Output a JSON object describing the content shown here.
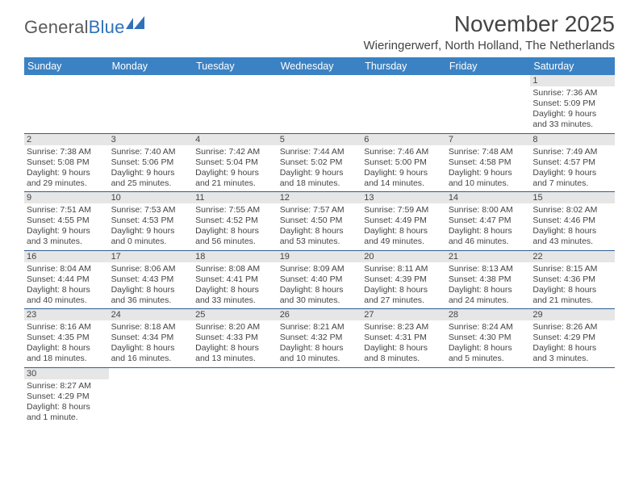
{
  "logo": {
    "general": "General",
    "blue": "Blue"
  },
  "title": "November 2025",
  "location": "Wieringerwerf, North Holland, The Netherlands",
  "colors": {
    "header_bg": "#3b82c4",
    "header_text": "#ffffff",
    "daynum_bg": "#e6e6e6",
    "rule": "#2f5f95",
    "text": "#444444",
    "logo_gray": "#5a5a5a",
    "logo_blue": "#2f72b8"
  },
  "day_headers": [
    "Sunday",
    "Monday",
    "Tuesday",
    "Wednesday",
    "Thursday",
    "Friday",
    "Saturday"
  ],
  "weeks": [
    [
      null,
      null,
      null,
      null,
      null,
      null,
      {
        "n": "1",
        "sr": "Sunrise: 7:36 AM",
        "ss": "Sunset: 5:09 PM",
        "dl1": "Daylight: 9 hours",
        "dl2": "and 33 minutes."
      }
    ],
    [
      {
        "n": "2",
        "sr": "Sunrise: 7:38 AM",
        "ss": "Sunset: 5:08 PM",
        "dl1": "Daylight: 9 hours",
        "dl2": "and 29 minutes."
      },
      {
        "n": "3",
        "sr": "Sunrise: 7:40 AM",
        "ss": "Sunset: 5:06 PM",
        "dl1": "Daylight: 9 hours",
        "dl2": "and 25 minutes."
      },
      {
        "n": "4",
        "sr": "Sunrise: 7:42 AM",
        "ss": "Sunset: 5:04 PM",
        "dl1": "Daylight: 9 hours",
        "dl2": "and 21 minutes."
      },
      {
        "n": "5",
        "sr": "Sunrise: 7:44 AM",
        "ss": "Sunset: 5:02 PM",
        "dl1": "Daylight: 9 hours",
        "dl2": "and 18 minutes."
      },
      {
        "n": "6",
        "sr": "Sunrise: 7:46 AM",
        "ss": "Sunset: 5:00 PM",
        "dl1": "Daylight: 9 hours",
        "dl2": "and 14 minutes."
      },
      {
        "n": "7",
        "sr": "Sunrise: 7:48 AM",
        "ss": "Sunset: 4:58 PM",
        "dl1": "Daylight: 9 hours",
        "dl2": "and 10 minutes."
      },
      {
        "n": "8",
        "sr": "Sunrise: 7:49 AM",
        "ss": "Sunset: 4:57 PM",
        "dl1": "Daylight: 9 hours",
        "dl2": "and 7 minutes."
      }
    ],
    [
      {
        "n": "9",
        "sr": "Sunrise: 7:51 AM",
        "ss": "Sunset: 4:55 PM",
        "dl1": "Daylight: 9 hours",
        "dl2": "and 3 minutes."
      },
      {
        "n": "10",
        "sr": "Sunrise: 7:53 AM",
        "ss": "Sunset: 4:53 PM",
        "dl1": "Daylight: 9 hours",
        "dl2": "and 0 minutes."
      },
      {
        "n": "11",
        "sr": "Sunrise: 7:55 AM",
        "ss": "Sunset: 4:52 PM",
        "dl1": "Daylight: 8 hours",
        "dl2": "and 56 minutes."
      },
      {
        "n": "12",
        "sr": "Sunrise: 7:57 AM",
        "ss": "Sunset: 4:50 PM",
        "dl1": "Daylight: 8 hours",
        "dl2": "and 53 minutes."
      },
      {
        "n": "13",
        "sr": "Sunrise: 7:59 AM",
        "ss": "Sunset: 4:49 PM",
        "dl1": "Daylight: 8 hours",
        "dl2": "and 49 minutes."
      },
      {
        "n": "14",
        "sr": "Sunrise: 8:00 AM",
        "ss": "Sunset: 4:47 PM",
        "dl1": "Daylight: 8 hours",
        "dl2": "and 46 minutes."
      },
      {
        "n": "15",
        "sr": "Sunrise: 8:02 AM",
        "ss": "Sunset: 4:46 PM",
        "dl1": "Daylight: 8 hours",
        "dl2": "and 43 minutes."
      }
    ],
    [
      {
        "n": "16",
        "sr": "Sunrise: 8:04 AM",
        "ss": "Sunset: 4:44 PM",
        "dl1": "Daylight: 8 hours",
        "dl2": "and 40 minutes."
      },
      {
        "n": "17",
        "sr": "Sunrise: 8:06 AM",
        "ss": "Sunset: 4:43 PM",
        "dl1": "Daylight: 8 hours",
        "dl2": "and 36 minutes."
      },
      {
        "n": "18",
        "sr": "Sunrise: 8:08 AM",
        "ss": "Sunset: 4:41 PM",
        "dl1": "Daylight: 8 hours",
        "dl2": "and 33 minutes."
      },
      {
        "n": "19",
        "sr": "Sunrise: 8:09 AM",
        "ss": "Sunset: 4:40 PM",
        "dl1": "Daylight: 8 hours",
        "dl2": "and 30 minutes."
      },
      {
        "n": "20",
        "sr": "Sunrise: 8:11 AM",
        "ss": "Sunset: 4:39 PM",
        "dl1": "Daylight: 8 hours",
        "dl2": "and 27 minutes."
      },
      {
        "n": "21",
        "sr": "Sunrise: 8:13 AM",
        "ss": "Sunset: 4:38 PM",
        "dl1": "Daylight: 8 hours",
        "dl2": "and 24 minutes."
      },
      {
        "n": "22",
        "sr": "Sunrise: 8:15 AM",
        "ss": "Sunset: 4:36 PM",
        "dl1": "Daylight: 8 hours",
        "dl2": "and 21 minutes."
      }
    ],
    [
      {
        "n": "23",
        "sr": "Sunrise: 8:16 AM",
        "ss": "Sunset: 4:35 PM",
        "dl1": "Daylight: 8 hours",
        "dl2": "and 18 minutes."
      },
      {
        "n": "24",
        "sr": "Sunrise: 8:18 AM",
        "ss": "Sunset: 4:34 PM",
        "dl1": "Daylight: 8 hours",
        "dl2": "and 16 minutes."
      },
      {
        "n": "25",
        "sr": "Sunrise: 8:20 AM",
        "ss": "Sunset: 4:33 PM",
        "dl1": "Daylight: 8 hours",
        "dl2": "and 13 minutes."
      },
      {
        "n": "26",
        "sr": "Sunrise: 8:21 AM",
        "ss": "Sunset: 4:32 PM",
        "dl1": "Daylight: 8 hours",
        "dl2": "and 10 minutes."
      },
      {
        "n": "27",
        "sr": "Sunrise: 8:23 AM",
        "ss": "Sunset: 4:31 PM",
        "dl1": "Daylight: 8 hours",
        "dl2": "and 8 minutes."
      },
      {
        "n": "28",
        "sr": "Sunrise: 8:24 AM",
        "ss": "Sunset: 4:30 PM",
        "dl1": "Daylight: 8 hours",
        "dl2": "and 5 minutes."
      },
      {
        "n": "29",
        "sr": "Sunrise: 8:26 AM",
        "ss": "Sunset: 4:29 PM",
        "dl1": "Daylight: 8 hours",
        "dl2": "and 3 minutes."
      }
    ],
    [
      {
        "n": "30",
        "sr": "Sunrise: 8:27 AM",
        "ss": "Sunset: 4:29 PM",
        "dl1": "Daylight: 8 hours",
        "dl2": "and 1 minute."
      },
      null,
      null,
      null,
      null,
      null,
      null
    ]
  ]
}
